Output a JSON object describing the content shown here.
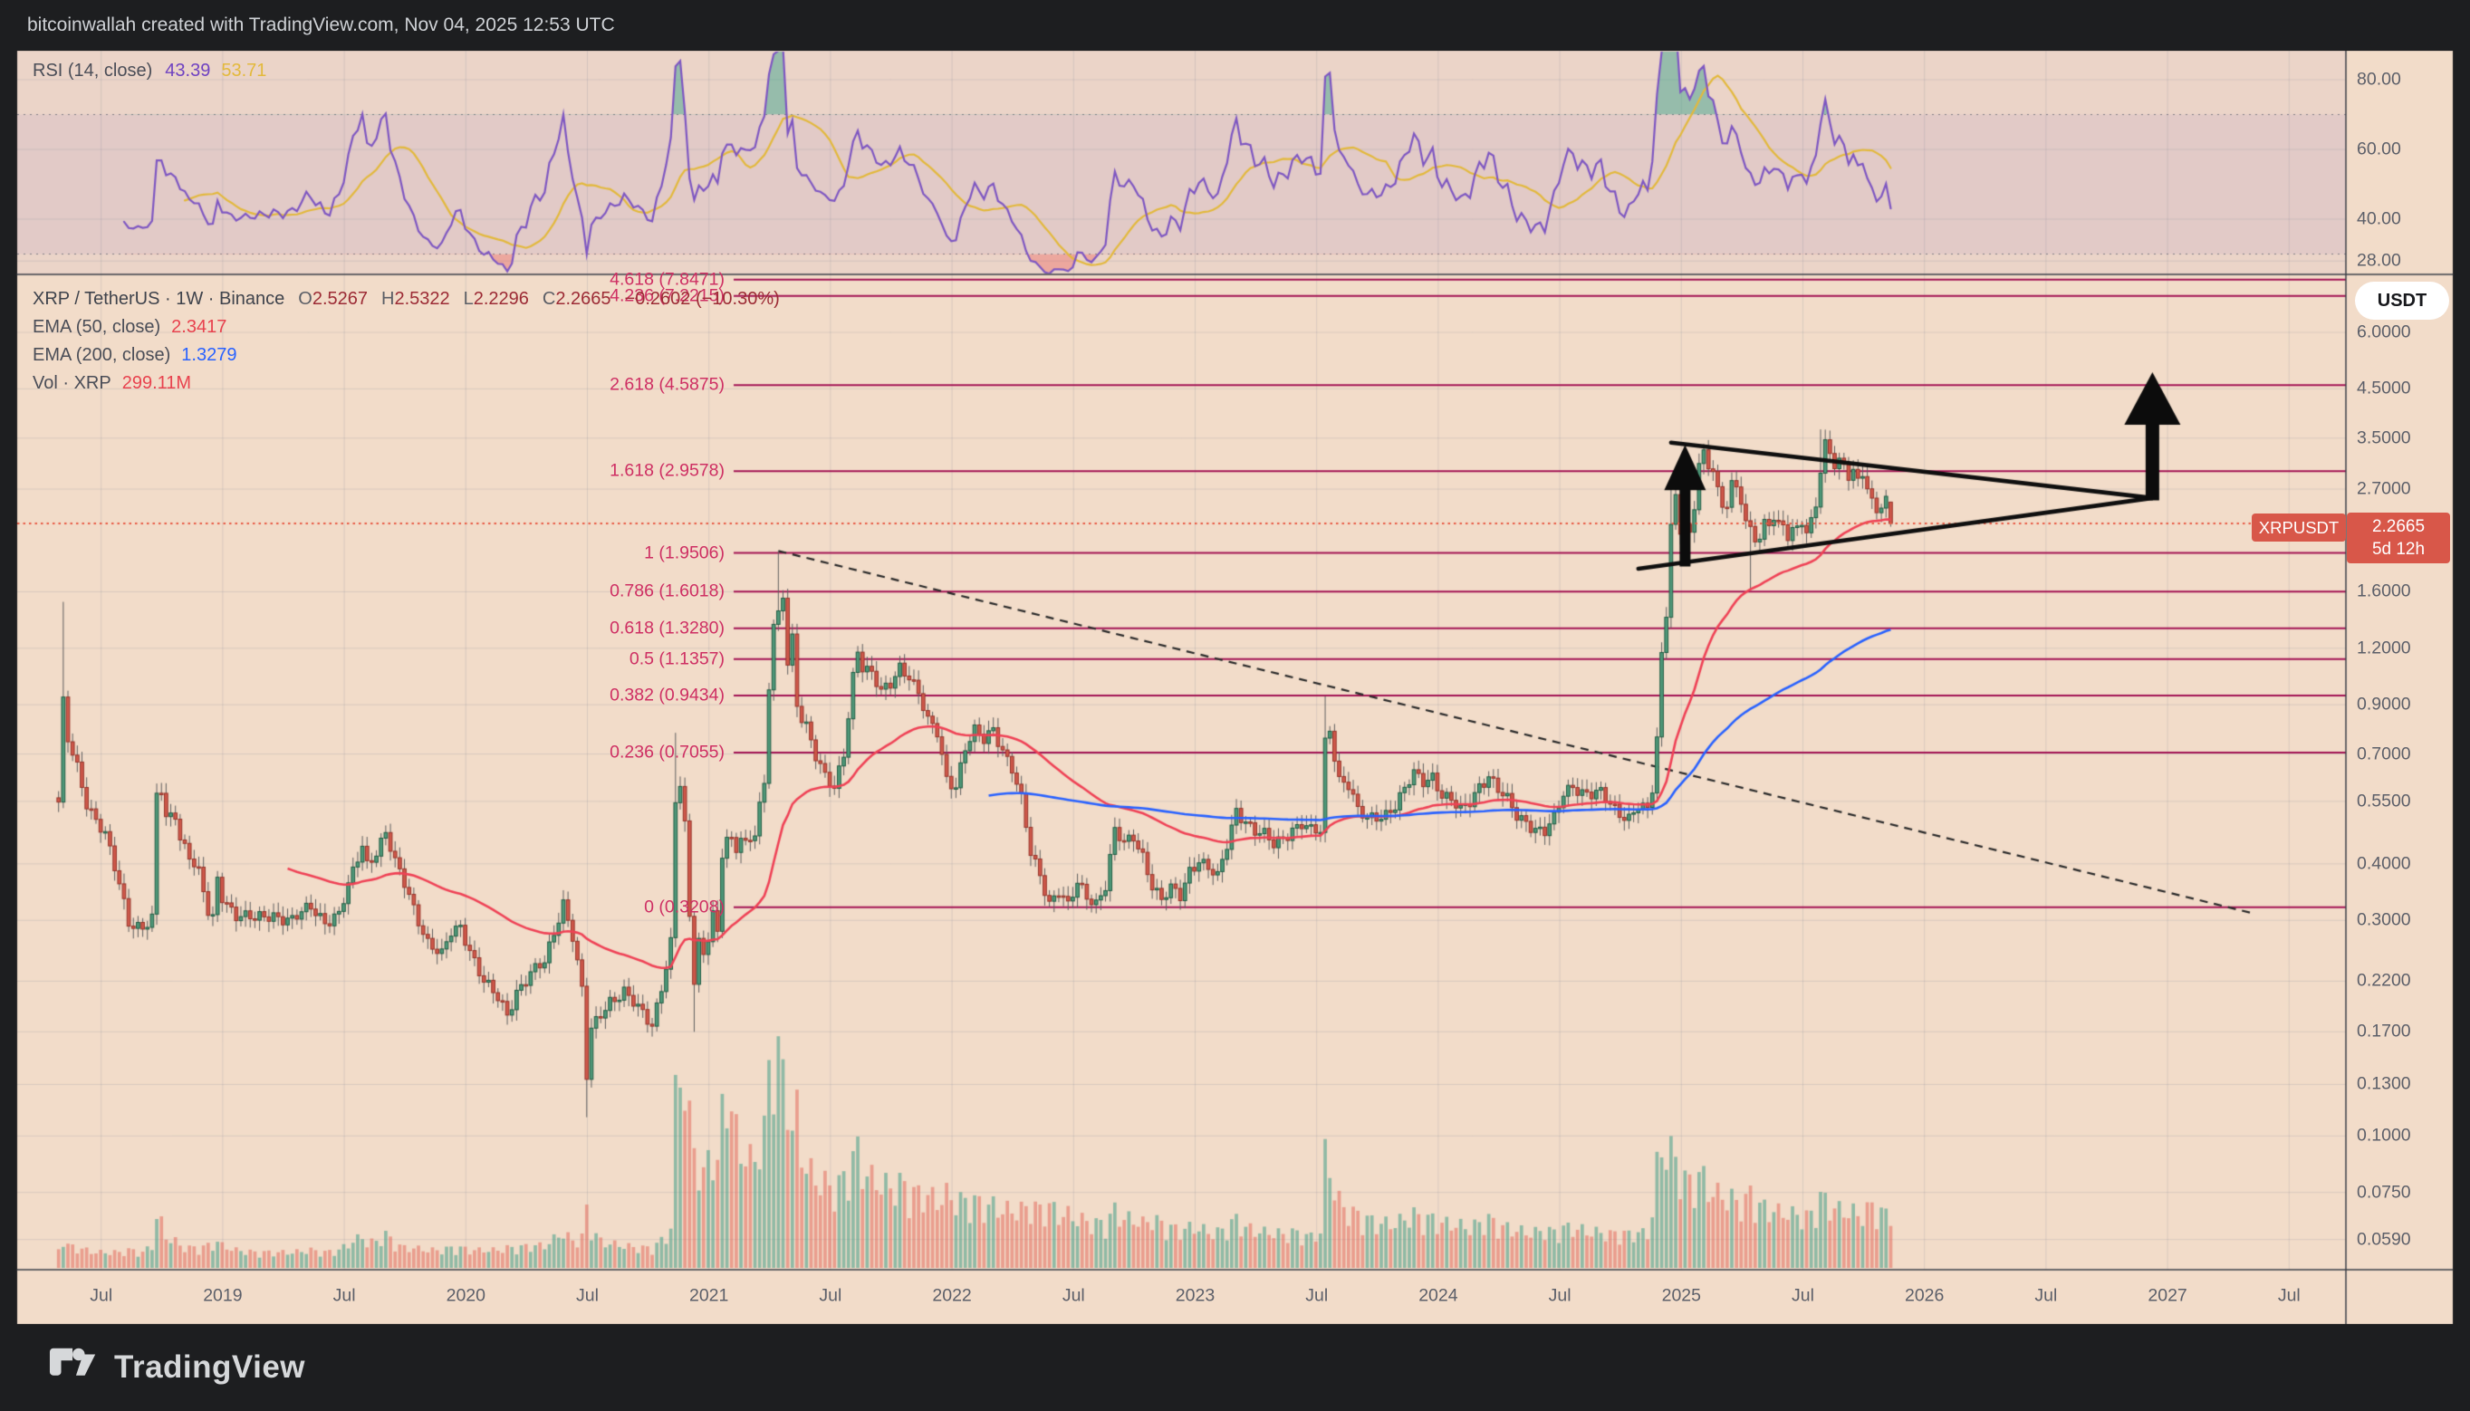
{
  "header": {
    "attribution": "bitcoinwallah created with TradingView.com, Nov 04, 2025 12:53 UTC"
  },
  "rsi_pane": {
    "legend": {
      "label": "RSI (14, close)",
      "rsi_value": "43.39",
      "ma_value": "53.71"
    },
    "axis_labels": [
      "80.00",
      "60.00",
      "40.00",
      "28.00"
    ],
    "upper_band": 70,
    "lower_band": 30,
    "colors": {
      "rsi_line": "#7e57c2",
      "ma_line": "#e3b93c",
      "band_fill": "rgba(126,87,194,0.08)"
    }
  },
  "main_pane": {
    "legend": {
      "symbol": "XRP / TetherUS · 1W · Binance",
      "ohlc": [
        {
          "k": "O",
          "v": "2.5267"
        },
        {
          "k": "H",
          "v": "2.5322"
        },
        {
          "k": "L",
          "v": "2.2296"
        },
        {
          "k": "C",
          "v": "2.2665"
        }
      ],
      "change": "−0.2602 (−10.30%)",
      "ema50_label": "EMA (50, close)",
      "ema50_value": "2.3417",
      "ema200_label": "EMA (200, close)",
      "ema200_value": "1.3279",
      "vol_label": "Vol · XRP",
      "vol_value": "299.11M"
    }
  },
  "price_axis": {
    "currency": "USDT",
    "labels": [
      "6.0000",
      "4.5000",
      "3.5000",
      "2.7000",
      "1.6000",
      "1.2000",
      "0.9000",
      "0.7000",
      "0.5500",
      "0.4000",
      "0.3000",
      "0.2200",
      "0.1700",
      "0.1300",
      "0.1000",
      "0.0750",
      "0.0590"
    ],
    "last_price": {
      "value": "2.2665",
      "countdown": "5d 12h"
    },
    "symbol_badge": "XRPUSDT"
  },
  "time_axis": {
    "labels": [
      "Jul",
      "2019",
      "Jul",
      "2020",
      "Jul",
      "2021",
      "Jul",
      "2022",
      "Jul",
      "2023",
      "Jul",
      "2024",
      "Jul",
      "2025",
      "Jul",
      "2026",
      "Jul",
      "2027",
      "Jul"
    ]
  },
  "footer": {
    "brand": "TradingView"
  },
  "chart_data": {
    "type": "candlestick",
    "symbol": "XRPUSDT",
    "description": "XRP / TetherUS",
    "timeframe": "1W",
    "exchange": "Binance",
    "scale": "log",
    "last_candle": {
      "open": 2.5267,
      "high": 2.5322,
      "low": 2.2296,
      "close": 2.2665,
      "change": -0.2602,
      "change_pct": -10.3
    },
    "ema50": 2.3417,
    "ema200": 1.3279,
    "last_volume": "299.11M",
    "rsi": 43.39,
    "rsi_ma": 53.71,
    "rsi_axis_ticks": [
      80,
      60,
      40,
      28
    ],
    "rsi_levels": {
      "upper": 70,
      "lower": 30
    },
    "price_axis_ticks": [
      6.0,
      4.5,
      3.5,
      2.7,
      1.6,
      1.2,
      0.9,
      0.7,
      0.55,
      0.4,
      0.3,
      0.22,
      0.17,
      0.13,
      0.1,
      0.075,
      0.059
    ],
    "fib_levels": [
      {
        "r": "4.618",
        "p": 7.8471
      },
      {
        "r": "4.236",
        "p": 7.2215
      },
      {
        "r": "2.618",
        "p": 4.5875
      },
      {
        "r": "1.618",
        "p": 2.9578
      },
      {
        "r": "1",
        "p": 1.9506
      },
      {
        "r": "0.786",
        "p": 1.6018
      },
      {
        "r": "0.618",
        "p": 1.328
      },
      {
        "r": "0.5",
        "p": 1.1357
      },
      {
        "r": "0.382",
        "p": 0.9434
      },
      {
        "r": "0.236",
        "p": 0.7055
      },
      {
        "r": "0",
        "p": 0.3208
      }
    ],
    "time_span": {
      "start": "2018-05",
      "end": "2027-07",
      "bar": "1 week"
    },
    "price_anchors": [
      [
        0,
        0.54,
        0.08
      ],
      [
        1,
        0.9,
        0.14
      ],
      [
        2,
        0.75,
        0.1
      ],
      [
        4,
        0.66,
        0.09
      ],
      [
        6,
        0.55,
        0.08
      ],
      [
        8,
        0.5,
        0.07
      ],
      [
        10,
        0.46,
        0.07
      ],
      [
        13,
        0.36,
        0.07
      ],
      [
        15,
        0.3,
        0.08
      ],
      [
        18,
        0.29,
        0.07
      ],
      [
        20,
        0.3,
        0.1
      ],
      [
        21,
        0.56,
        0.23
      ],
      [
        22,
        0.58,
        0.2
      ],
      [
        23,
        0.5,
        0.14
      ],
      [
        25,
        0.52,
        0.12
      ],
      [
        26,
        0.46,
        0.1
      ],
      [
        28,
        0.42,
        0.09
      ],
      [
        30,
        0.38,
        0.09
      ],
      [
        32,
        0.31,
        0.1
      ],
      [
        33,
        0.3,
        0.1
      ],
      [
        34,
        0.37,
        0.12
      ],
      [
        35,
        0.34,
        0.1
      ],
      [
        38,
        0.31,
        0.08
      ],
      [
        42,
        0.3,
        0.07
      ],
      [
        46,
        0.31,
        0.07
      ],
      [
        50,
        0.3,
        0.07
      ],
      [
        54,
        0.32,
        0.08
      ],
      [
        57,
        0.3,
        0.07
      ],
      [
        60,
        0.31,
        0.08
      ],
      [
        63,
        0.38,
        0.12
      ],
      [
        65,
        0.44,
        0.14
      ],
      [
        66,
        0.4,
        0.11
      ],
      [
        68,
        0.43,
        0.12
      ],
      [
        70,
        0.47,
        0.15
      ],
      [
        72,
        0.4,
        0.11
      ],
      [
        74,
        0.36,
        0.09
      ],
      [
        76,
        0.32,
        0.09
      ],
      [
        79,
        0.27,
        0.08
      ],
      [
        82,
        0.25,
        0.08
      ],
      [
        84,
        0.28,
        0.09
      ],
      [
        86,
        0.29,
        0.09
      ],
      [
        88,
        0.26,
        0.08
      ],
      [
        91,
        0.22,
        0.08
      ],
      [
        94,
        0.2,
        0.08
      ],
      [
        96,
        0.185,
        0.09
      ],
      [
        98,
        0.21,
        0.09
      ],
      [
        101,
        0.23,
        0.1
      ],
      [
        104,
        0.24,
        0.1
      ],
      [
        106,
        0.28,
        0.13
      ],
      [
        108,
        0.33,
        0.16
      ],
      [
        110,
        0.28,
        0.12
      ],
      [
        112,
        0.21,
        0.14
      ],
      [
        113,
        0.135,
        0.26
      ],
      [
        114,
        0.17,
        0.18
      ],
      [
        116,
        0.185,
        0.12
      ],
      [
        118,
        0.2,
        0.11
      ],
      [
        121,
        0.21,
        0.1
      ],
      [
        124,
        0.19,
        0.09
      ],
      [
        127,
        0.175,
        0.09
      ],
      [
        130,
        0.24,
        0.14
      ],
      [
        131,
        0.27,
        0.18
      ],
      [
        132,
        0.55,
        0.75
      ],
      [
        133,
        0.6,
        0.92
      ],
      [
        134,
        0.48,
        0.8
      ],
      [
        135,
        0.3,
        0.65
      ],
      [
        136,
        0.22,
        0.55
      ],
      [
        137,
        0.27,
        0.45
      ],
      [
        138,
        0.25,
        0.4
      ],
      [
        139,
        0.28,
        0.5
      ],
      [
        140,
        0.32,
        0.6
      ],
      [
        141,
        0.28,
        0.45
      ],
      [
        142,
        0.42,
        0.7
      ],
      [
        143,
        0.46,
        0.85
      ],
      [
        144,
        0.44,
        0.7
      ],
      [
        145,
        0.42,
        0.6
      ],
      [
        146,
        0.46,
        0.55
      ],
      [
        147,
        0.44,
        0.5
      ],
      [
        148,
        0.45,
        0.48
      ],
      [
        149,
        0.48,
        0.5
      ],
      [
        150,
        0.55,
        0.55
      ],
      [
        151,
        0.6,
        0.6
      ],
      [
        152,
        1.0,
        0.9
      ],
      [
        153,
        1.35,
        1.0
      ],
      [
        154,
        1.4,
        0.95
      ],
      [
        155,
        1.55,
        0.85
      ],
      [
        156,
        1.1,
        0.88
      ],
      [
        157,
        1.25,
        0.6
      ],
      [
        158,
        0.9,
        0.7
      ],
      [
        159,
        0.85,
        0.55
      ],
      [
        160,
        0.82,
        0.45
      ],
      [
        162,
        0.7,
        0.4
      ],
      [
        164,
        0.62,
        0.38
      ],
      [
        166,
        0.58,
        0.35
      ],
      [
        168,
        0.7,
        0.4
      ],
      [
        170,
        1.05,
        0.5
      ],
      [
        171,
        1.2,
        0.52
      ],
      [
        172,
        1.1,
        0.45
      ],
      [
        174,
        1.05,
        0.4
      ],
      [
        176,
        0.95,
        0.38
      ],
      [
        178,
        1.0,
        0.36
      ],
      [
        180,
        1.1,
        0.38
      ],
      [
        182,
        1.05,
        0.35
      ],
      [
        184,
        0.95,
        0.33
      ],
      [
        186,
        0.82,
        0.33
      ],
      [
        188,
        0.78,
        0.3
      ],
      [
        190,
        0.62,
        0.33
      ],
      [
        192,
        0.6,
        0.3
      ],
      [
        194,
        0.72,
        0.3
      ],
      [
        196,
        0.78,
        0.3
      ],
      [
        198,
        0.75,
        0.28
      ],
      [
        200,
        0.8,
        0.28
      ],
      [
        202,
        0.72,
        0.26
      ],
      [
        204,
        0.65,
        0.26
      ],
      [
        206,
        0.55,
        0.26
      ],
      [
        208,
        0.42,
        0.28
      ],
      [
        210,
        0.38,
        0.26
      ],
      [
        212,
        0.33,
        0.28
      ],
      [
        214,
        0.35,
        0.24
      ],
      [
        216,
        0.32,
        0.24
      ],
      [
        218,
        0.36,
        0.22
      ],
      [
        220,
        0.34,
        0.21
      ],
      [
        222,
        0.33,
        0.2
      ],
      [
        224,
        0.36,
        0.2
      ],
      [
        226,
        0.47,
        0.26
      ],
      [
        228,
        0.44,
        0.22
      ],
      [
        230,
        0.46,
        0.22
      ],
      [
        232,
        0.42,
        0.2
      ],
      [
        234,
        0.36,
        0.22
      ],
      [
        236,
        0.33,
        0.2
      ],
      [
        238,
        0.35,
        0.18
      ],
      [
        240,
        0.34,
        0.17
      ],
      [
        242,
        0.39,
        0.18
      ],
      [
        244,
        0.41,
        0.18
      ],
      [
        246,
        0.39,
        0.16
      ],
      [
        248,
        0.37,
        0.16
      ],
      [
        250,
        0.44,
        0.18
      ],
      [
        252,
        0.53,
        0.22
      ],
      [
        254,
        0.5,
        0.18
      ],
      [
        256,
        0.47,
        0.17
      ],
      [
        258,
        0.46,
        0.16
      ],
      [
        260,
        0.44,
        0.16
      ],
      [
        262,
        0.46,
        0.15
      ],
      [
        264,
        0.48,
        0.16
      ],
      [
        266,
        0.49,
        0.15
      ],
      [
        268,
        0.47,
        0.14
      ],
      [
        270,
        0.47,
        0.16
      ],
      [
        271,
        0.74,
        0.5
      ],
      [
        272,
        0.8,
        0.45
      ],
      [
        273,
        0.7,
        0.35
      ],
      [
        274,
        0.62,
        0.3
      ],
      [
        276,
        0.6,
        0.25
      ],
      [
        278,
        0.52,
        0.24
      ],
      [
        280,
        0.5,
        0.22
      ],
      [
        282,
        0.51,
        0.2
      ],
      [
        284,
        0.52,
        0.2
      ],
      [
        286,
        0.54,
        0.2
      ],
      [
        288,
        0.58,
        0.22
      ],
      [
        290,
        0.63,
        0.24
      ],
      [
        292,
        0.61,
        0.22
      ],
      [
        294,
        0.63,
        0.22
      ],
      [
        296,
        0.57,
        0.2
      ],
      [
        298,
        0.55,
        0.2
      ],
      [
        300,
        0.52,
        0.19
      ],
      [
        302,
        0.55,
        0.18
      ],
      [
        304,
        0.6,
        0.2
      ],
      [
        306,
        0.63,
        0.22
      ],
      [
        308,
        0.58,
        0.19
      ],
      [
        310,
        0.55,
        0.18
      ],
      [
        312,
        0.51,
        0.17
      ],
      [
        314,
        0.5,
        0.16
      ],
      [
        316,
        0.48,
        0.16
      ],
      [
        318,
        0.47,
        0.17
      ],
      [
        320,
        0.5,
        0.16
      ],
      [
        322,
        0.57,
        0.18
      ],
      [
        324,
        0.6,
        0.18
      ],
      [
        326,
        0.58,
        0.17
      ],
      [
        328,
        0.57,
        0.16
      ],
      [
        330,
        0.57,
        0.16
      ],
      [
        332,
        0.54,
        0.15
      ],
      [
        334,
        0.52,
        0.16
      ],
      [
        336,
        0.51,
        0.15
      ],
      [
        338,
        0.54,
        0.16
      ],
      [
        340,
        0.52,
        0.15
      ],
      [
        341,
        0.58,
        0.25
      ],
      [
        342,
        0.75,
        0.45
      ],
      [
        343,
        1.15,
        0.52
      ],
      [
        344,
        1.45,
        0.55
      ],
      [
        345,
        2.3,
        0.52
      ],
      [
        346,
        2.6,
        0.48
      ],
      [
        347,
        2.2,
        0.45
      ],
      [
        348,
        2.3,
        0.4
      ],
      [
        349,
        2.1,
        0.38
      ],
      [
        350,
        2.4,
        0.38
      ],
      [
        351,
        3.1,
        0.42
      ],
      [
        352,
        3.2,
        0.4
      ],
      [
        353,
        2.95,
        0.36
      ],
      [
        354,
        3.05,
        0.34
      ],
      [
        355,
        2.75,
        0.33
      ],
      [
        356,
        2.45,
        0.33
      ],
      [
        357,
        2.55,
        0.31
      ],
      [
        358,
        2.85,
        0.31
      ],
      [
        359,
        2.65,
        0.3
      ],
      [
        360,
        2.5,
        0.29
      ],
      [
        361,
        2.3,
        0.3
      ],
      [
        362,
        2.15,
        0.34
      ],
      [
        363,
        2.05,
        0.3
      ],
      [
        364,
        2.15,
        0.28
      ],
      [
        365,
        2.3,
        0.27
      ],
      [
        366,
        2.25,
        0.26
      ],
      [
        367,
        2.4,
        0.26
      ],
      [
        368,
        2.3,
        0.25
      ],
      [
        369,
        2.2,
        0.25
      ],
      [
        370,
        2.1,
        0.25
      ],
      [
        371,
        2.2,
        0.24
      ],
      [
        372,
        2.15,
        0.24
      ],
      [
        373,
        2.25,
        0.23
      ],
      [
        374,
        2.2,
        0.23
      ],
      [
        375,
        2.3,
        0.24
      ],
      [
        376,
        2.5,
        0.28
      ],
      [
        377,
        3.05,
        0.32
      ],
      [
        378,
        3.45,
        0.3
      ],
      [
        379,
        3.2,
        0.28
      ],
      [
        380,
        3.05,
        0.27
      ],
      [
        381,
        3.1,
        0.26
      ],
      [
        382,
        2.95,
        0.26
      ],
      [
        383,
        2.85,
        0.25
      ],
      [
        384,
        3.0,
        0.25
      ],
      [
        385,
        2.8,
        0.24
      ],
      [
        386,
        2.95,
        0.24
      ],
      [
        387,
        2.8,
        0.26
      ],
      [
        388,
        2.55,
        0.28
      ],
      [
        389,
        2.4,
        0.26
      ],
      [
        390,
        2.5,
        0.25
      ],
      [
        391,
        2.53,
        0.24
      ],
      [
        392,
        2.2665,
        0.26
      ]
    ],
    "wick_overrides": {
      "1": {
        "h": 1.52
      },
      "113": {
        "l": 0.11
      },
      "132": {
        "h": 0.78
      },
      "136": {
        "l": 0.17
      },
      "154": {
        "h": 1.97
      },
      "271": {
        "h": 0.94
      },
      "345": {
        "h": 2.75
      },
      "346": {
        "h": 2.9
      },
      "352": {
        "h": 3.4
      },
      "362": {
        "l": 1.61
      },
      "377": {
        "h": 3.66
      },
      "392": {
        "o": 2.5267,
        "h": 2.5322,
        "l": 2.2296,
        "c": 2.2665
      }
    },
    "drawings": {
      "descending_dashed_trendline": {
        "x1_week": 154,
        "price1": 1.97,
        "x2_week": 470,
        "price2": 0.31
      },
      "triangle_upper": {
        "x1_week": 345,
        "price1": 3.42,
        "x2_week": 448,
        "price2": 2.58
      },
      "triangle_lower": {
        "x1_week": 338,
        "price1": 1.8,
        "x2_week": 448,
        "price2": 2.58
      },
      "small_up_arrow": {
        "week": 348,
        "from_price": 1.82,
        "to_price": 3.38
      },
      "big_up_arrow": {
        "week": 448,
        "from_price": 2.55,
        "to_price": 4.9
      }
    }
  }
}
